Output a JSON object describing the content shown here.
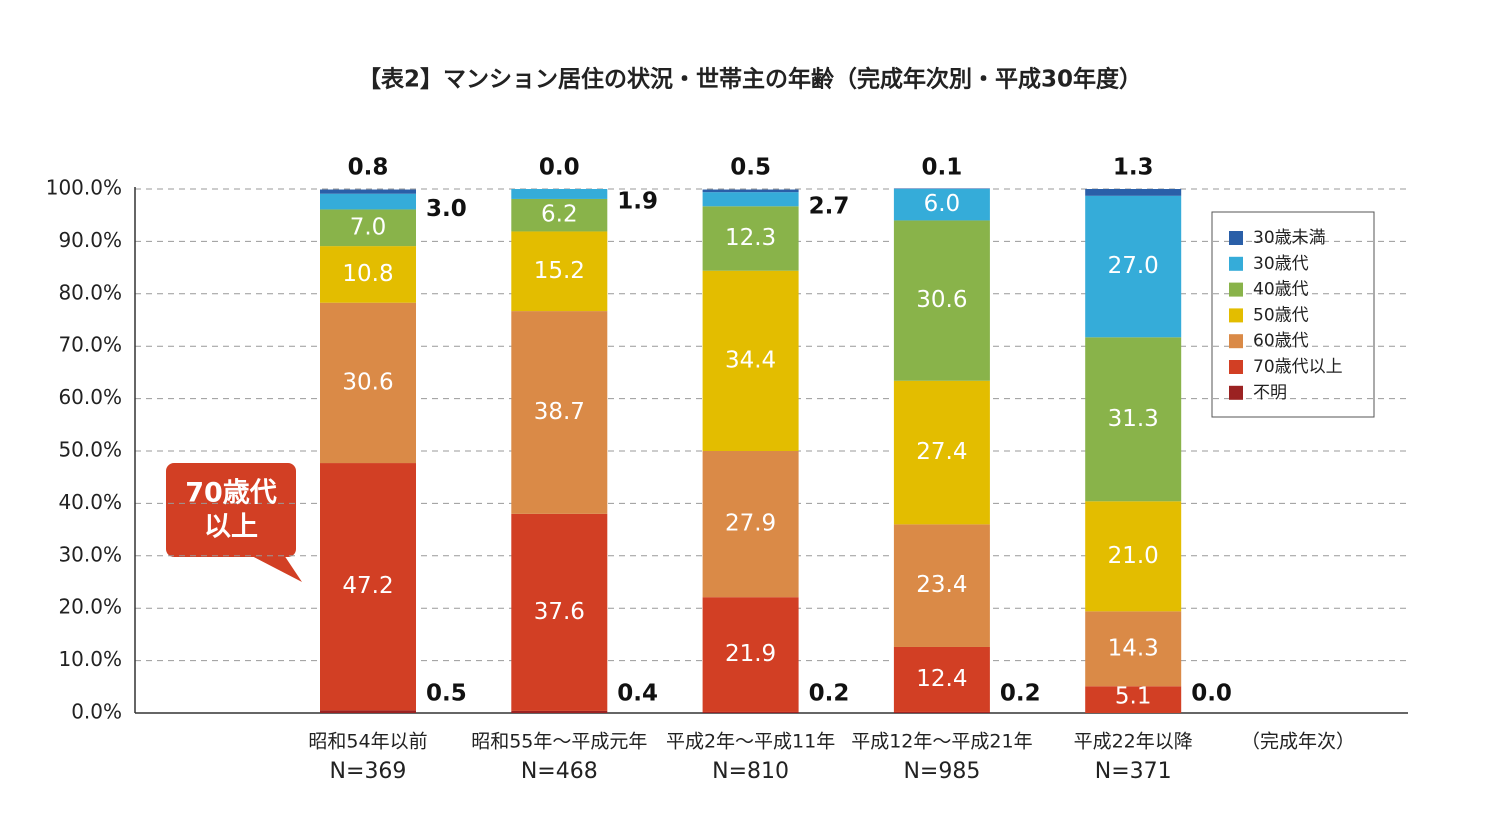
{
  "chart_data": {
    "type": "stacked_bar",
    "title": "【表2】マンション居住の状況・世帯主の年齢（完成年次別・平成30年度）",
    "categories": [
      "昭和54年以前",
      "昭和55年～平成元年",
      "平成2年～平成11年",
      "平成12年～平成21年",
      "平成22年以降"
    ],
    "sample_sizes": [
      "N=369",
      "N=468",
      "N=810",
      "N=985",
      "N=371"
    ],
    "x_label": "（完成年次）",
    "ylim": [
      0,
      100
    ],
    "yticks": [
      {
        "value": 0,
        "label": "0.0%"
      },
      {
        "value": 10,
        "label": "10.0%"
      },
      {
        "value": 20,
        "label": "20.0%"
      },
      {
        "value": 30,
        "label": "30.0%"
      },
      {
        "value": 40,
        "label": "40.0%"
      },
      {
        "value": 50,
        "label": "50.0%"
      },
      {
        "value": 60,
        "label": "60.0%"
      },
      {
        "value": 70,
        "label": "70.0%"
      },
      {
        "value": 80,
        "label": "80.0%"
      },
      {
        "value": 90,
        "label": "90.0%"
      },
      {
        "value": 100,
        "label": "100.0%"
      }
    ],
    "grid": true,
    "legend_position": "upper right",
    "series": [
      {
        "name": "不明",
        "color": "#9b2222",
        "values": [
          0.5,
          0.4,
          0.2,
          0.2,
          0.0
        ],
        "value_labels": [
          "0.5",
          "0.4",
          "0.2",
          "0.2",
          "0.0"
        ]
      },
      {
        "name": "70歳代以上",
        "color": "#d23f24",
        "values": [
          47.2,
          37.6,
          21.9,
          12.4,
          5.1
        ],
        "value_labels": [
          "47.2",
          "37.6",
          "21.9",
          "12.4",
          "5.1"
        ]
      },
      {
        "name": "60歳代",
        "color": "#da8a47",
        "values": [
          30.6,
          38.7,
          27.9,
          23.4,
          14.3
        ],
        "value_labels": [
          "30.6",
          "38.7",
          "27.9",
          "23.4",
          "14.3"
        ]
      },
      {
        "name": "50歳代",
        "color": "#e3bd00",
        "values": [
          10.8,
          15.2,
          34.4,
          27.4,
          21.0
        ],
        "value_labels": [
          "10.8",
          "15.2",
          "34.4",
          "27.4",
          "21.0"
        ]
      },
      {
        "name": "40歳代",
        "color": "#89b34a",
        "values": [
          7.0,
          6.2,
          12.3,
          30.6,
          31.3
        ],
        "value_labels": [
          "7.0",
          "6.2",
          "12.3",
          "30.6",
          "31.3"
        ]
      },
      {
        "name": "30歳代",
        "color": "#35acd9",
        "values": [
          3.0,
          1.9,
          2.7,
          6.0,
          27.0
        ],
        "value_labels": [
          "3.0",
          "1.9",
          "2.7",
          "6.0",
          "27.0"
        ]
      },
      {
        "name": "30歳未満",
        "color": "#2a5fa8",
        "values": [
          0.8,
          0.0,
          0.5,
          0.1,
          1.3
        ],
        "value_labels": [
          "0.8",
          "0.0",
          "0.5",
          "0.1",
          "1.3"
        ]
      }
    ],
    "annotation": [
      "70歳代",
      "以上"
    ]
  }
}
